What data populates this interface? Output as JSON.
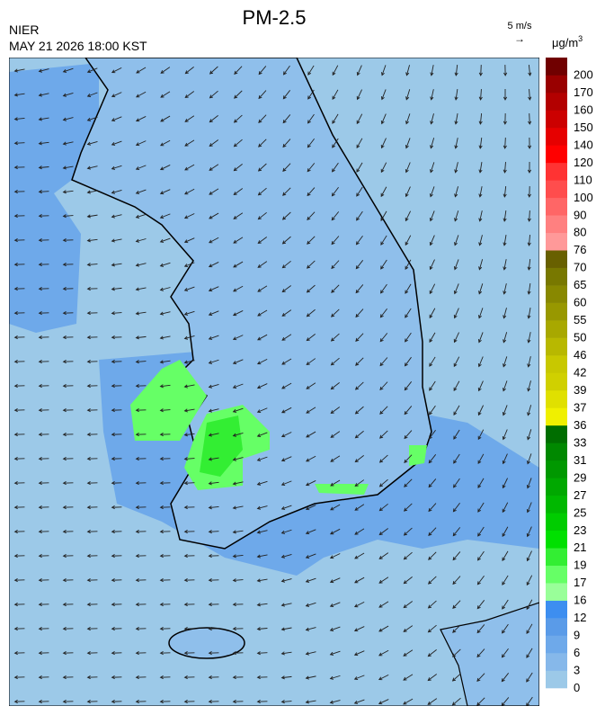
{
  "header": {
    "title": "PM-2.5",
    "agency": "NIER",
    "timestamp": "MAY 21 2026 18:00 KST",
    "wind_reference": "5 m/s",
    "wind_arrow": "→"
  },
  "colorbar": {
    "unit": "μg/m",
    "unit_exponent": "3",
    "ticks": [
      0,
      3,
      6,
      9,
      12,
      16,
      17,
      19,
      21,
      23,
      25,
      27,
      29,
      31,
      33,
      36,
      37,
      39,
      42,
      46,
      50,
      55,
      60,
      65,
      70,
      76,
      80,
      90,
      100,
      110,
      120,
      140,
      150,
      160,
      170,
      200
    ],
    "colors": [
      "#9cc9e8",
      "#86b8ea",
      "#6ea9ea",
      "#5a9be8",
      "#3d8ef0",
      "#99ff99",
      "#66ff66",
      "#33ee33",
      "#00e000",
      "#00cc00",
      "#00b800",
      "#00a800",
      "#009800",
      "#008800",
      "#006e00",
      "#f0f000",
      "#e0e000",
      "#d0d000",
      "#c8c800",
      "#b8b800",
      "#a8a800",
      "#989800",
      "#888800",
      "#787800",
      "#686000",
      "#ff9999",
      "#ff8080",
      "#ff6666",
      "#ff4d4d",
      "#ff3333",
      "#ff0000",
      "#e60000",
      "#cc0000",
      "#b30000",
      "#990000",
      "#700000"
    ]
  }
}
